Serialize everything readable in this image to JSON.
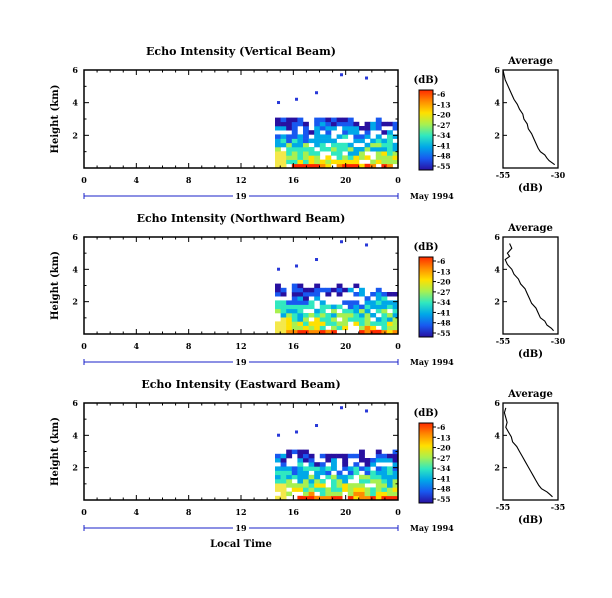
{
  "xlabel": "Local Time",
  "date_label": "May 1994",
  "day_label": "19",
  "cbar_unit": "(dB)",
  "cbar_ticks": [
    "-6",
    "-13",
    "-20",
    "-27",
    "-34",
    "-41",
    "-48",
    "-55"
  ],
  "cbar_colors": [
    "#ff2a00",
    "#ff8c00",
    "#ffe000",
    "#a8f050",
    "#30e8c0",
    "#00a8e8",
    "#1858f0",
    "#2810a0"
  ],
  "chart_data": [
    {
      "type": "heatmap",
      "title": "Echo Intensity (Vertical Beam)",
      "ylabel": "Height (km)",
      "x_ticks": [
        "0",
        "4",
        "8",
        "12",
        "16",
        "20",
        "0"
      ],
      "y_ticks": [
        "6",
        "4",
        "2"
      ],
      "avg": {
        "title": "Average",
        "xlabel": "(dB)",
        "x_ticks": [
          "-55",
          "-30"
        ],
        "y_ticks": [
          "6",
          "4",
          "2"
        ],
        "profile_x": [
          -55,
          -54.5,
          -54,
          -53,
          -52,
          -51,
          -50,
          -48.5,
          -47.5,
          -46,
          -45.5,
          -44,
          -43.5,
          -42,
          -41,
          -40,
          -39,
          -38,
          -36,
          -35,
          -34,
          -32.5,
          -31.5
        ],
        "profile_h": [
          6.0,
          5.7,
          5.4,
          5.1,
          4.8,
          4.5,
          4.2,
          3.9,
          3.6,
          3.3,
          3.0,
          2.7,
          2.4,
          2.1,
          1.8,
          1.5,
          1.2,
          1.0,
          0.8,
          0.6,
          0.45,
          0.3,
          0.2
        ]
      }
    },
    {
      "type": "heatmap",
      "title": "Echo Intensity (Northward Beam)",
      "ylabel": "Height (km)",
      "x_ticks": [
        "0",
        "4",
        "8",
        "12",
        "16",
        "20",
        "0"
      ],
      "y_ticks": [
        "6",
        "4",
        "2"
      ],
      "avg": {
        "title": "Average",
        "xlabel": "(dB)",
        "x_ticks": [
          "-55",
          "-30"
        ],
        "y_ticks": [
          "6",
          "4",
          "2"
        ],
        "profile_x": [
          -52,
          -51,
          -53,
          -52,
          -54,
          -53,
          -51,
          -50,
          -48,
          -47,
          -45,
          -44,
          -43,
          -42,
          -40,
          -39,
          -38,
          -36,
          -35,
          -33,
          -32
        ],
        "profile_h": [
          5.6,
          5.3,
          5.0,
          4.8,
          4.6,
          4.3,
          4.0,
          3.7,
          3.4,
          3.1,
          2.8,
          2.5,
          2.2,
          1.9,
          1.6,
          1.3,
          1.0,
          0.8,
          0.55,
          0.35,
          0.2
        ]
      }
    },
    {
      "type": "heatmap",
      "title": "Echo Intensity (Eastward Beam)",
      "ylabel": "Height (km)",
      "x_ticks": [
        "0",
        "4",
        "8",
        "12",
        "16",
        "20",
        "0"
      ],
      "y_ticks": [
        "6",
        "4",
        "2"
      ],
      "avg": {
        "title": "Average",
        "xlabel": "(dB)",
        "x_ticks": [
          "-55",
          "-35"
        ],
        "y_ticks": [
          "6",
          "4",
          "2"
        ],
        "profile_x": [
          -54,
          -54.5,
          -54,
          -53.5,
          -54,
          -53,
          -52,
          -51.5,
          -50,
          -49,
          -48,
          -47,
          -46,
          -45,
          -44,
          -43,
          -42,
          -41,
          -39,
          -38,
          -37
        ],
        "profile_h": [
          5.7,
          5.4,
          5.1,
          4.8,
          4.5,
          4.2,
          3.9,
          3.6,
          3.3,
          3.0,
          2.7,
          2.4,
          2.1,
          1.8,
          1.5,
          1.2,
          0.9,
          0.7,
          0.5,
          0.35,
          0.2
        ]
      }
    }
  ]
}
